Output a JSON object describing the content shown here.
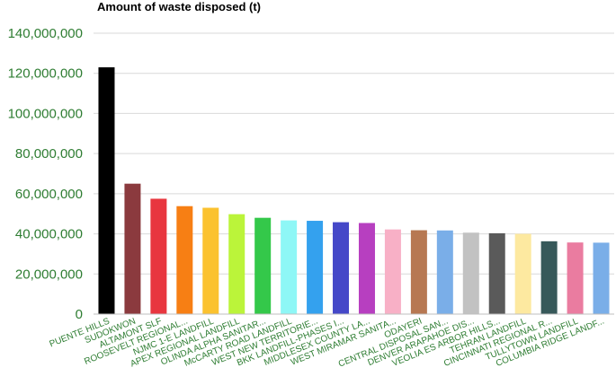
{
  "chart_data": {
    "type": "bar",
    "title": "Amount of waste disposed (t)",
    "xlabel": "",
    "ylabel": "",
    "ylim": [
      0,
      140000000
    ],
    "yticks": [
      0,
      20000000,
      40000000,
      60000000,
      80000000,
      100000000,
      120000000,
      140000000
    ],
    "ytick_labels": [
      "0",
      "20,000,000",
      "40,000,000",
      "60,000,000",
      "80,000,000",
      "100,000,000",
      "120,000,000",
      "140,000,000"
    ],
    "grid": true,
    "legend": "none",
    "categories": [
      "PUENTE HILLS",
      "SUDOKWON",
      "ALTAMONT SLF",
      "ROOSEVELT REGIONAL...",
      "NJMC 1-E LANDFILL",
      "APEX REGIONAL LANDFILL",
      "OLINDA ALPHA SANITAR...",
      "McCARTY ROAD LANDFILL",
      "WEST NEW TERRITORIE...",
      "BKK LANDFILL-PHASES I...",
      "MIDDLESEX COUNTY LA...",
      "WEST MIRAMAR SANITA...",
      "ODAYERI",
      "CENTRAL DISPOSAL SAN...",
      "DENVER ARAPAHOE DIS...",
      "VEOLIA ES ARBOR HILLS...",
      "TEHRAN LANDFILL",
      "CINCINNATI REGIONAL R...",
      "TULLYTOWN LANDFILL",
      "COLUMBIA RIDGE LANDF..."
    ],
    "values": [
      123000000,
      65000000,
      57500000,
      53800000,
      53000000,
      49800000,
      48000000,
      46700000,
      46500000,
      45800000,
      45400000,
      42200000,
      41800000,
      41700000,
      40600000,
      40300000,
      40000000,
      36300000,
      35700000,
      35600000
    ],
    "bar_colors": [
      "#000000",
      "#8b3a3e",
      "#e8363f",
      "#f77f14",
      "#fbc22f",
      "#bbf43a",
      "#34c84a",
      "#8ef7f6",
      "#34a1ee",
      "#4548c8",
      "#b73fc0",
      "#f8b0c6",
      "#b77852",
      "#7aaee8",
      "#c2c2c2",
      "#5a5a5a",
      "#fde9a0",
      "#37595a",
      "#ea7ca0",
      "#7aaee8"
    ],
    "colors": {
      "tick_label": "#2e7d32",
      "grid": "#d9d9d9"
    }
  }
}
